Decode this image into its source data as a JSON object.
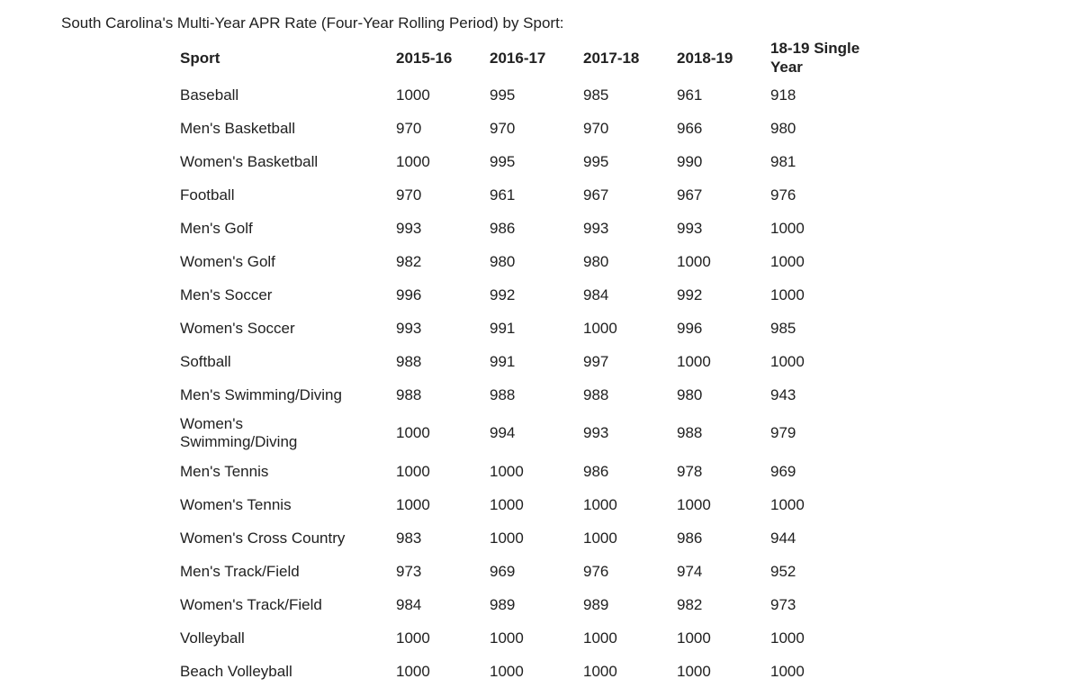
{
  "page": {
    "title": "South Carolina's Multi-Year APR Rate (Four-Year Rolling Period) by Sport:"
  },
  "table": {
    "columns": [
      "Sport",
      "2015-16",
      "2016-17",
      "2017-18",
      "2018-19",
      "18-19 Single Year"
    ],
    "rows": [
      {
        "sport": "Baseball",
        "values": [
          "1000",
          "995",
          "985",
          "961",
          "918"
        ]
      },
      {
        "sport": "Men's Basketball",
        "values": [
          "970",
          "970",
          "970",
          "966",
          "980"
        ]
      },
      {
        "sport": "Women's Basketball",
        "values": [
          "1000",
          "995",
          "995",
          "990",
          "981"
        ]
      },
      {
        "sport": "Football",
        "values": [
          "970",
          "961",
          "967",
          "967",
          "976"
        ]
      },
      {
        "sport": "Men's Golf",
        "values": [
          "993",
          "986",
          "993",
          "993",
          "1000"
        ]
      },
      {
        "sport": "Women's Golf",
        "values": [
          "982",
          "980",
          "980",
          "1000",
          "1000"
        ]
      },
      {
        "sport": "Men's Soccer",
        "values": [
          "996",
          "992",
          "984",
          "992",
          "1000"
        ]
      },
      {
        "sport": "Women's Soccer",
        "values": [
          "993",
          "991",
          "1000",
          "996",
          "985"
        ]
      },
      {
        "sport": "Softball",
        "values": [
          "988",
          "991",
          "997",
          "1000",
          "1000"
        ]
      },
      {
        "sport": "Men's Swimming/Diving",
        "values": [
          "988",
          "988",
          "988",
          "980",
          "943"
        ]
      },
      {
        "sport": "Women's\nSwimming/Diving",
        "values": [
          "1000",
          "994",
          "993",
          "988",
          "979"
        ]
      },
      {
        "sport": "Men's Tennis",
        "values": [
          "1000",
          "1000",
          "986",
          "978",
          "969"
        ]
      },
      {
        "sport": "Women's Tennis",
        "values": [
          "1000",
          "1000",
          "1000",
          "1000",
          "1000"
        ]
      },
      {
        "sport": "Women's Cross Country",
        "values": [
          "983",
          "1000",
          "1000",
          "986",
          "944"
        ]
      },
      {
        "sport": "Men's Track/Field",
        "values": [
          "973",
          "969",
          "976",
          "974",
          "952"
        ]
      },
      {
        "sport": "Women's Track/Field",
        "values": [
          "984",
          "989",
          "989",
          "982",
          "973"
        ]
      },
      {
        "sport": "Volleyball",
        "values": [
          "1000",
          "1000",
          "1000",
          "1000",
          "1000"
        ]
      },
      {
        "sport": "Beach Volleyball",
        "values": [
          "1000",
          "1000",
          "1000",
          "1000",
          "1000"
        ]
      }
    ]
  },
  "colors": {
    "text": "#212121",
    "background": "#ffffff"
  }
}
